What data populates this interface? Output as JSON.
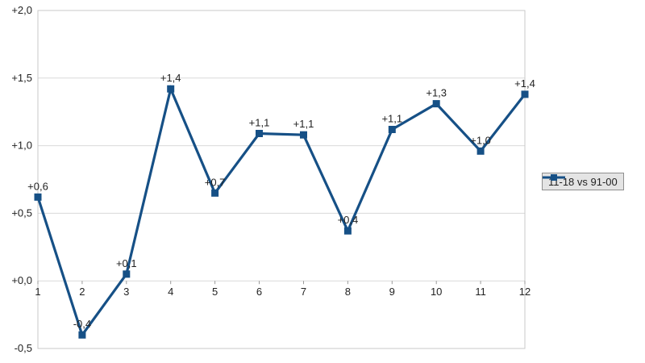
{
  "chart_data": {
    "type": "line",
    "title": "",
    "xlabel": "",
    "ylabel": "",
    "categories": [
      "1",
      "2",
      "3",
      "4",
      "5",
      "6",
      "7",
      "8",
      "9",
      "10",
      "11",
      "12"
    ],
    "series": [
      {
        "name": "11-18 vs 91-00",
        "color": "#165086",
        "values": [
          0.62,
          -0.4,
          0.05,
          1.42,
          0.65,
          1.09,
          1.08,
          0.37,
          1.12,
          1.31,
          0.96,
          1.38
        ],
        "point_labels": [
          "+0,6",
          "-0,4",
          "+0,1",
          "+1,4",
          "+0,7",
          "+1,1",
          "+1,1",
          "+0,4",
          "+1,1",
          "+1,3",
          "+1,0",
          "+1,4"
        ]
      }
    ],
    "ylim": [
      -0.5,
      2.0
    ],
    "ytick_values": [
      -0.5,
      0.0,
      0.5,
      1.0,
      1.5,
      2.0
    ],
    "ytick_labels": [
      "-0,5",
      "+0,0",
      "+0,5",
      "+1,0",
      "+1,5",
      "+2,0"
    ],
    "grid": true,
    "legend_position": "right",
    "marker_shape": "square"
  },
  "colors": {
    "series": "#165086",
    "grid": "#d9d9d9",
    "plot_border": "#c9c9c9",
    "axis_tick": "#9a9a9a",
    "text": "#222222",
    "legend_bg": "#e4e4e4",
    "legend_border": "#8f8f8f"
  }
}
